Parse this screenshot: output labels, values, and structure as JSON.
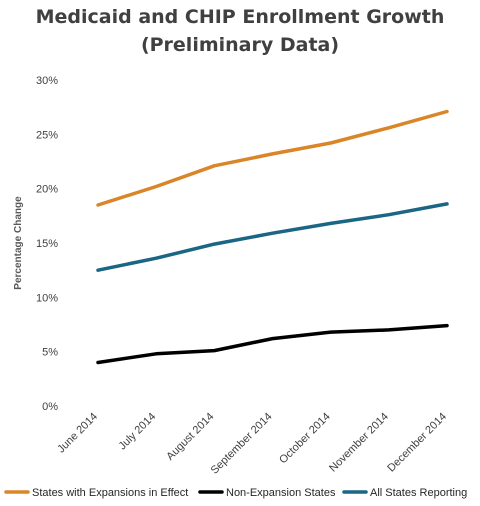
{
  "chart_data": {
    "type": "line",
    "title": "Medicaid and CHIP Enrollment Growth",
    "subtitle": "(Preliminary Data)",
    "xlabel": "",
    "ylabel": "Percentage Change",
    "categories": [
      "June 2014",
      "July 2014",
      "August 2014",
      "September 2014",
      "October 2014",
      "November 2014",
      "December 2014"
    ],
    "ylim": [
      0,
      30
    ],
    "yticks": [
      0,
      5,
      10,
      15,
      20,
      25,
      30
    ],
    "ytick_labels": [
      "0%",
      "5%",
      "10%",
      "15%",
      "20%",
      "25%",
      "30%"
    ],
    "grid": false,
    "legend_position": "bottom",
    "series": [
      {
        "name": "States with Expansions in Effect",
        "color": "#d98528",
        "values": [
          18.5,
          20.2,
          22.1,
          23.2,
          24.2,
          25.6,
          27.1
        ]
      },
      {
        "name": "Non-Expansion States",
        "color": "#000000",
        "values": [
          4.0,
          4.8,
          5.1,
          6.2,
          6.8,
          7.0,
          7.4
        ]
      },
      {
        "name": "All States Reporting",
        "color": "#1b6585",
        "values": [
          12.5,
          13.6,
          14.9,
          15.9,
          16.8,
          17.6,
          18.6
        ]
      }
    ]
  }
}
